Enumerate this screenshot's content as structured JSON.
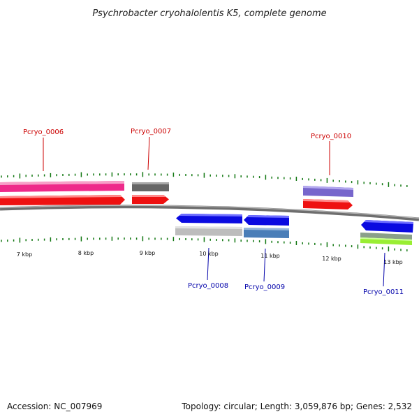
{
  "title": "Psychrobacter cryohalolentis K5, complete genome",
  "footer": {
    "accession": "Accession: NC_007969",
    "summary": "Topology: circular; Length: 3,059,876 bp; Genes: 2,532"
  },
  "colors": {
    "forward_label": "#cc0000",
    "reverse_label": "#0000aa",
    "tick": "#117711",
    "backbone": "#7a7a7a"
  },
  "tick_labels": [
    "7 kbp",
    "8 kbp",
    "9 kbp",
    "10 kbp",
    "11 kbp",
    "12 kbp",
    "13 kbp"
  ],
  "gene_labels": {
    "forward": [
      "Pcryo_0006",
      "Pcryo_0007",
      "Pcryo_0010"
    ],
    "reverse": [
      "Pcryo_0008",
      "Pcryo_0009",
      "Pcryo_0011"
    ]
  }
}
